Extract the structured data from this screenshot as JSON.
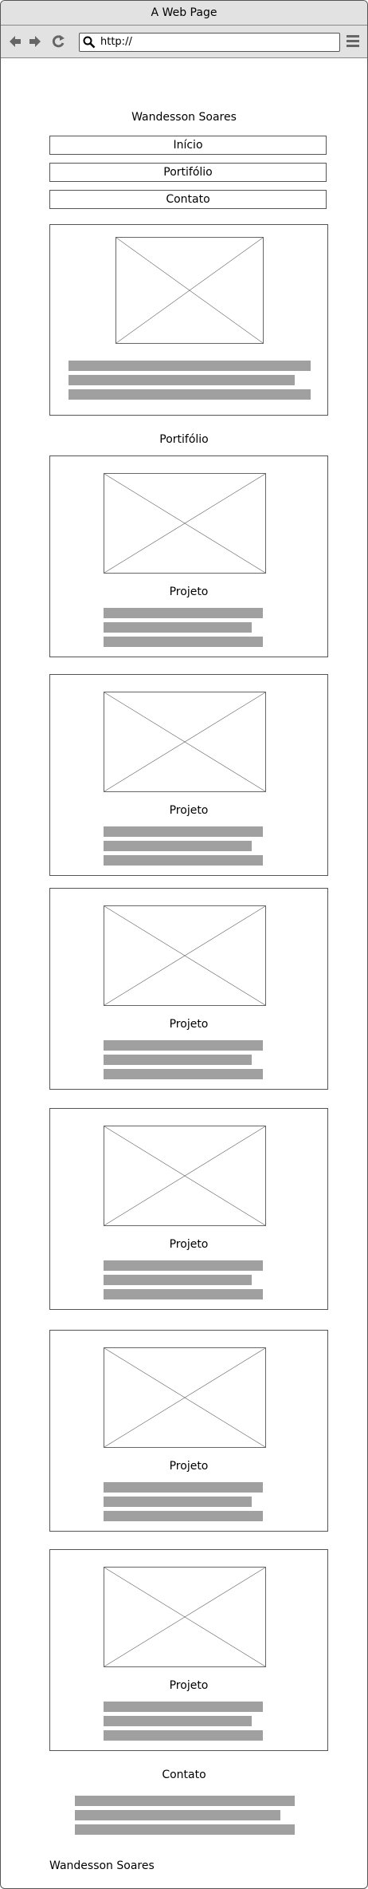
{
  "window": {
    "title": "A Web Page"
  },
  "toolbar": {
    "back_icon": "arrow-left-icon",
    "forward_icon": "arrow-right-icon",
    "refresh_icon": "refresh-icon",
    "url": "http://",
    "menu_icon": "hamburger-menu-icon"
  },
  "header": {
    "name": "Wandesson Soares"
  },
  "nav": {
    "items": [
      {
        "label": "Início"
      },
      {
        "label": "Portifólio"
      },
      {
        "label": "Contato"
      }
    ]
  },
  "portfolio": {
    "heading": "Portifólio",
    "projects": [
      {
        "title": "Projeto"
      },
      {
        "title": "Projeto"
      },
      {
        "title": "Projeto"
      },
      {
        "title": "Projeto"
      },
      {
        "title": "Projeto"
      },
      {
        "title": "Projeto"
      }
    ]
  },
  "contact": {
    "heading": "Contato"
  },
  "footer": {
    "name": "Wandesson Soares"
  },
  "colors": {
    "chrome": "#e2e2e2",
    "border": "#555555",
    "text_placeholder": "#a0a0a0"
  }
}
